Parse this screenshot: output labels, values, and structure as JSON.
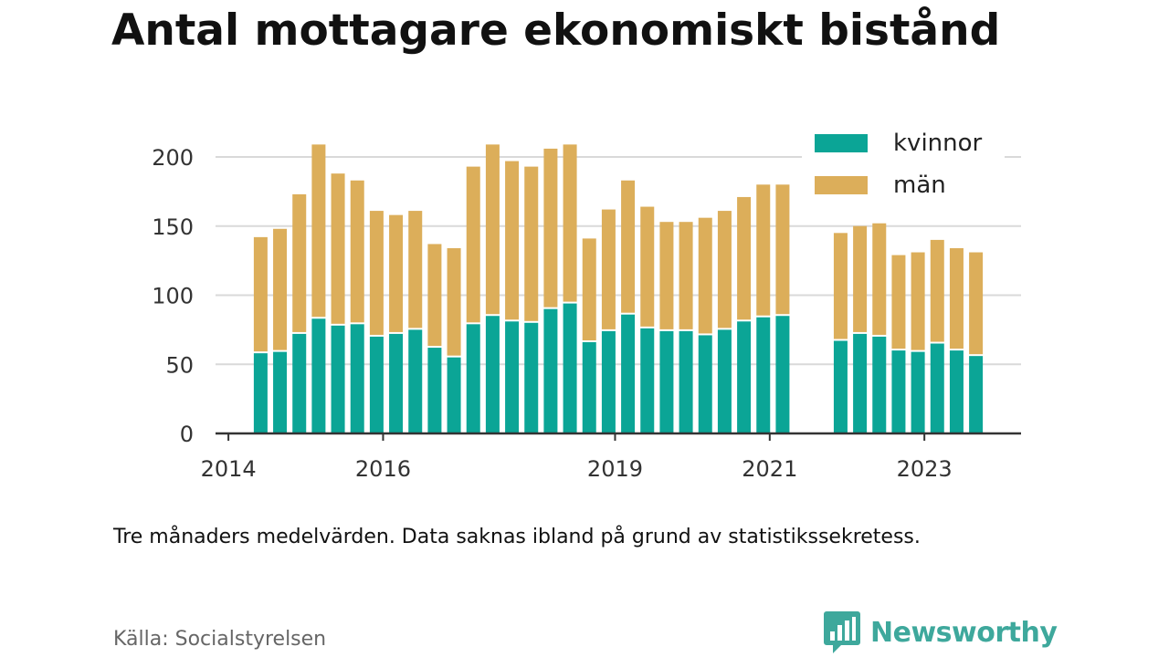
{
  "title": "Antal mottagare ekonomiskt bistånd",
  "note": "Tre månaders medelvärden. Data saknas ibland på grund av statistikssekretess.",
  "source": "Källa: Socialstyrelsen",
  "brand": "Newsworthy",
  "colors": {
    "kvinnor": "#0ba596",
    "man": "#dcae5a",
    "grid": "#d9d9d9",
    "brand": "#3ea89c"
  },
  "chart_data": {
    "type": "bar",
    "stacked": true,
    "title": "Antal mottagare ekonomiskt bistånd",
    "ylim": [
      0,
      220
    ],
    "yticks": [
      0,
      50,
      100,
      150,
      200
    ],
    "xlim": [
      "2014-01",
      "2024-06"
    ],
    "xticks": [
      {
        "label": "2014",
        "x": "2014-03"
      },
      {
        "label": "2016",
        "x": "2016-03"
      },
      {
        "label": "2019",
        "x": "2019-03"
      },
      {
        "label": "2021",
        "x": "2021-03"
      },
      {
        "label": "2023",
        "x": "2023-03"
      }
    ],
    "grid": true,
    "legend": {
      "position": "top-right",
      "entries": [
        "kvinnor",
        "män"
      ]
    },
    "x": [
      "2014-08",
      "2014-11",
      "2015-02",
      "2015-05",
      "2015-08",
      "2015-11",
      "2016-02",
      "2016-05",
      "2016-08",
      "2016-11",
      "2017-02",
      "2017-05",
      "2017-08",
      "2017-11",
      "2018-02",
      "2018-05",
      "2018-08",
      "2018-11",
      "2019-02",
      "2019-05",
      "2019-08",
      "2019-11",
      "2020-02",
      "2020-05",
      "2020-08",
      "2020-11",
      "2021-02",
      "2021-05",
      "2021-08",
      "2021-11",
      "2022-02",
      "2022-05",
      "2022-08",
      "2022-11",
      "2023-02",
      "2023-05",
      "2023-08",
      "2023-11"
    ],
    "series": [
      {
        "name": "kvinnor",
        "values": [
          58,
          59,
          72,
          83,
          78,
          79,
          70,
          72,
          75,
          62,
          55,
          79,
          85,
          81,
          80,
          90,
          94,
          66,
          74,
          86,
          76,
          74,
          74,
          71,
          75,
          81,
          84,
          85,
          null,
          null,
          67,
          72,
          70,
          60,
          59,
          65,
          60,
          56
        ]
      },
      {
        "name": "män",
        "values": [
          84,
          89,
          101,
          126,
          110,
          104,
          91,
          86,
          86,
          75,
          79,
          114,
          124,
          116,
          113,
          116,
          115,
          75,
          88,
          97,
          88,
          79,
          79,
          85,
          86,
          90,
          96,
          95,
          null,
          null,
          78,
          78,
          82,
          69,
          72,
          75,
          74,
          75
        ]
      }
    ]
  }
}
